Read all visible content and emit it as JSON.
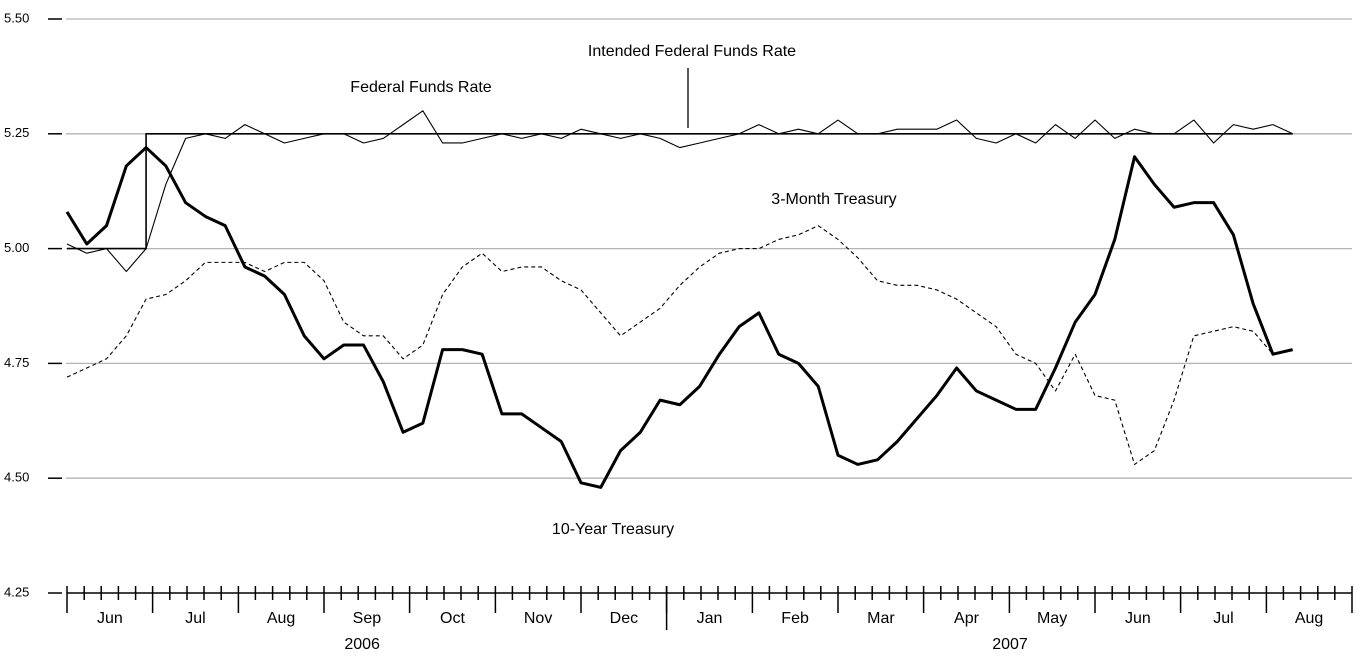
{
  "chart_data": {
    "type": "line",
    "annotation_pointer_series": 0,
    "x": [
      0,
      1,
      2,
      3,
      4,
      5,
      6,
      7,
      8,
      9,
      10,
      11,
      12,
      13,
      14,
      15,
      16,
      17,
      18,
      19,
      20,
      21,
      22,
      23,
      24,
      25,
      26,
      27,
      28,
      29,
      30,
      31,
      32,
      33,
      34,
      35,
      36,
      37,
      38,
      39,
      40,
      41,
      42,
      43,
      44,
      45,
      46,
      47,
      48,
      49,
      50,
      51,
      52,
      53,
      54,
      55,
      56,
      57,
      58,
      59,
      60,
      61,
      62
    ],
    "series": [
      {
        "name": "Intended Federal Funds Rate",
        "color": "#000000",
        "linewidth": 1.6,
        "linestyle": "solid",
        "drawstyle": "steps-pre",
        "values": [
          5.0,
          5.0,
          5.0,
          5.0,
          5.0,
          5.25,
          5.25,
          5.25,
          5.25,
          5.25,
          5.25,
          5.25,
          5.25,
          5.25,
          5.25,
          5.25,
          5.25,
          5.25,
          5.25,
          5.25,
          5.25,
          5.25,
          5.25,
          5.25,
          5.25,
          5.25,
          5.25,
          5.25,
          5.25,
          5.25,
          5.25,
          5.25,
          5.25,
          5.25,
          5.25,
          5.25,
          5.25,
          5.25,
          5.25,
          5.25,
          5.25,
          5.25,
          5.25,
          5.25,
          5.25,
          5.25,
          5.25,
          5.25,
          5.25,
          5.25,
          5.25,
          5.25,
          5.25,
          5.25,
          5.25,
          5.25,
          5.25,
          5.25,
          5.25,
          5.25,
          5.25,
          5.25,
          5.25
        ]
      },
      {
        "name": "Federal Funds Rate",
        "color": "#000000",
        "linewidth": 1.1,
        "linestyle": "solid",
        "values": [
          5.01,
          4.99,
          5.0,
          4.95,
          5.0,
          5.14,
          5.24,
          5.25,
          5.24,
          5.27,
          5.25,
          5.23,
          5.24,
          5.25,
          5.25,
          5.23,
          5.24,
          5.27,
          5.3,
          5.23,
          5.23,
          5.24,
          5.25,
          5.24,
          5.25,
          5.24,
          5.26,
          5.25,
          5.24,
          5.25,
          5.24,
          5.22,
          5.23,
          5.24,
          5.25,
          5.27,
          5.25,
          5.26,
          5.25,
          5.28,
          5.25,
          5.25,
          5.26,
          5.26,
          5.26,
          5.28,
          5.24,
          5.23,
          5.25,
          5.23,
          5.27,
          5.24,
          5.28,
          5.24,
          5.26,
          5.25,
          5.25,
          5.28,
          5.23,
          5.27,
          5.26,
          5.27,
          5.25
        ]
      },
      {
        "name": "3-Month Treasury",
        "color": "#000000",
        "linewidth": 1.1,
        "linestyle": "dashed",
        "values": [
          4.72,
          4.74,
          4.76,
          4.81,
          4.89,
          4.9,
          4.93,
          4.97,
          4.97,
          4.97,
          4.95,
          4.97,
          4.97,
          4.93,
          4.84,
          4.81,
          4.81,
          4.76,
          4.79,
          4.9,
          4.96,
          4.99,
          4.95,
          4.96,
          4.96,
          4.93,
          4.91,
          4.86,
          4.81,
          4.84,
          4.87,
          4.92,
          4.96,
          4.99,
          5.0,
          5.0,
          5.02,
          5.03,
          5.05,
          5.02,
          4.98,
          4.93,
          4.92,
          4.92,
          4.91,
          4.89,
          4.86,
          4.83,
          4.77,
          4.75,
          4.69,
          4.77,
          4.68,
          4.67,
          4.53,
          4.56,
          4.67,
          4.81,
          4.82,
          4.83,
          4.82,
          4.77,
          4.78
        ]
      },
      {
        "name": "10-Year Treasury",
        "color": "#000000",
        "linewidth": 3,
        "linestyle": "solid",
        "values": [
          5.08,
          5.01,
          5.05,
          5.18,
          5.22,
          5.18,
          5.1,
          5.07,
          5.05,
          4.96,
          4.94,
          4.9,
          4.81,
          4.76,
          4.79,
          4.79,
          4.71,
          4.6,
          4.62,
          4.78,
          4.78,
          4.77,
          4.64,
          4.64,
          4.61,
          4.58,
          4.49,
          4.48,
          4.56,
          4.6,
          4.67,
          4.66,
          4.7,
          4.77,
          4.83,
          4.86,
          4.77,
          4.75,
          4.7,
          4.55,
          4.53,
          4.54,
          4.58,
          4.63,
          4.68,
          4.74,
          4.69,
          4.67,
          4.65,
          4.65,
          4.74,
          4.84,
          4.9,
          5.02,
          5.2,
          5.14,
          5.09,
          5.1,
          5.1,
          5.03,
          4.88,
          4.77,
          4.78
        ]
      }
    ],
    "xlim": [
      0,
      65
    ],
    "xticks": [
      0,
      0.87,
      1.73,
      2.6,
      3.47,
      4.33,
      5.2,
      6.07,
      6.93,
      7.8,
      8.67,
      9.53,
      10.4,
      11.27,
      12.13,
      13,
      13.87,
      14.73,
      15.6,
      16.47,
      17.33,
      18.2,
      19.07,
      19.93,
      20.8,
      21.67,
      22.53,
      23.4,
      24.27,
      25.13,
      26,
      26.87,
      27.73,
      28.6,
      29.47,
      30.33,
      31.2,
      32.07,
      32.93,
      33.8,
      34.67,
      35.53,
      36.4,
      37.27,
      38.13,
      39,
      39.87,
      40.73,
      41.6,
      42.47,
      43.33,
      44.2,
      45.07,
      45.93,
      46.8,
      47.67,
      48.53,
      49.4,
      50.27,
      51.13,
      52,
      52.87,
      53.73,
      54.6,
      55.47,
      56.33,
      57.2,
      58.07,
      58.93,
      59.8,
      60.67,
      61.53,
      62.4,
      63.27,
      64.13,
      65
    ],
    "month_labels": [
      {
        "value": 2.17,
        "label": "Jun"
      },
      {
        "value": 6.5,
        "label": "Jul"
      },
      {
        "value": 10.83,
        "label": "Aug"
      },
      {
        "value": 15.17,
        "label": "Sep"
      },
      {
        "value": 19.5,
        "label": "Oct"
      },
      {
        "value": 23.83,
        "label": "Nov"
      },
      {
        "value": 28.17,
        "label": "Dec"
      },
      {
        "value": 32.5,
        "label": "Jan"
      },
      {
        "value": 36.83,
        "label": "Feb"
      },
      {
        "value": 41.17,
        "label": "Mar"
      },
      {
        "value": 45.5,
        "label": "Apr"
      },
      {
        "value": 49.83,
        "label": "May"
      },
      {
        "value": 54.17,
        "label": "Jun"
      },
      {
        "value": 58.5,
        "label": "Jul"
      },
      {
        "value": 62.83,
        "label": "Aug"
      }
    ],
    "year_labels": [
      {
        "value": 14.93,
        "label": "2006"
      },
      {
        "value": 47.7,
        "label": "2007"
      }
    ],
    "year_ticks": [
      30.33
    ],
    "ylim": [
      4.25,
      5.5
    ],
    "yticks": [
      {
        "value": 4.25,
        "label": "4.25"
      },
      {
        "value": 4.5,
        "label": "4.50"
      },
      {
        "value": 4.75,
        "label": "4.75"
      },
      {
        "value": 5.0,
        "label": "5.00"
      },
      {
        "value": 5.25,
        "label": "5.25"
      },
      {
        "value": 5.5,
        "label": "5.50"
      }
    ],
    "grid": true
  }
}
